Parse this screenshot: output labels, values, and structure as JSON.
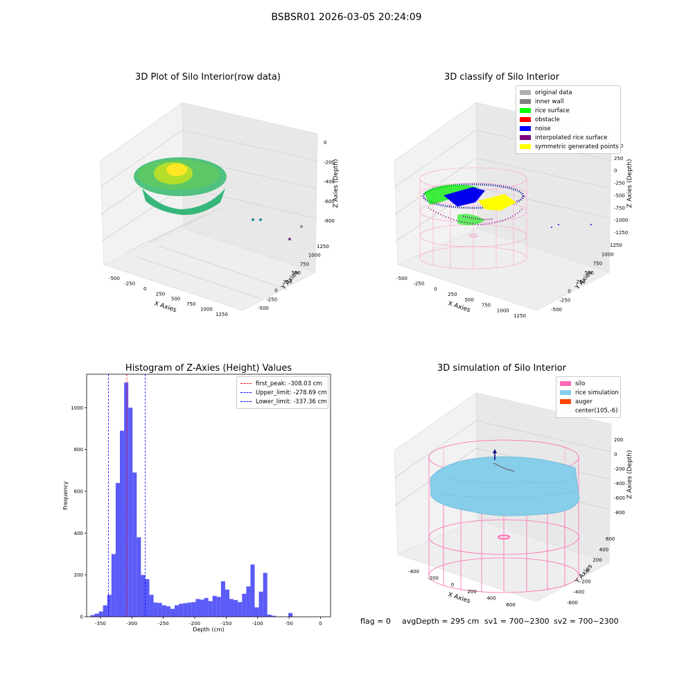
{
  "figure": {
    "suptitle": "BSBSR01 2026-03-05 20:24:09",
    "status": {
      "flag": "flag = 0",
      "avg_depth": "avgDepth = 295 cm",
      "sv1": "sv1 = 700~2300",
      "sv2": "sv2 = 700~2300"
    }
  },
  "colors": {
    "hist_bar": "#5252f7",
    "first_peak_line": "#ff0000",
    "limit_line": "#0000ff",
    "silo": "#ff69b4",
    "rice_simulation": "#87ceeb",
    "auger": "#ff4500",
    "original_data": "#b0b0b0",
    "inner_wall": "#808080",
    "rice_surface": "#00ff00",
    "obstacle": "#ff0000",
    "noise": "#0000ff",
    "interpolated_rice_surface": "#800080",
    "symmetric_generated_points": "#ffff00"
  },
  "chart_data": [
    {
      "type": "scatter",
      "projection": "3d",
      "title": "3D Plot of Silo Interior(row data)",
      "xlabel": "X Axies",
      "ylabel": "Y Axies",
      "zlabel": "Z Axies (Depth)",
      "x_ticks": [
        "-500",
        "-250",
        "0",
        "250",
        "500",
        "750",
        "1000",
        "1250"
      ],
      "y_ticks": [
        "-500",
        "-250",
        "0",
        "250",
        "500",
        "750",
        "1000",
        "1250"
      ],
      "z_ticks": [
        "-800",
        "-600",
        "-400",
        "-200",
        "0"
      ],
      "colormap": "viridis (by depth)"
    },
    {
      "type": "scatter",
      "projection": "3d",
      "title": "3D classify of Silo Interior",
      "xlabel": "X Axies",
      "ylabel": "Y Axies",
      "zlabel": "Z Axies (Depth)",
      "x_ticks": [
        "-500",
        "-250",
        "0",
        "250",
        "500",
        "750",
        "1000",
        "1250"
      ],
      "y_ticks": [
        "-500",
        "-250",
        "0",
        "250",
        "500",
        "750",
        "1000",
        "1250"
      ],
      "z_ticks": [
        "-1250",
        "-1000",
        "-750",
        "-500",
        "-250",
        "0",
        "250",
        "500"
      ],
      "legend_position": "top-right",
      "legend": [
        "original data",
        "inner wall",
        "rice surface",
        "obstacle",
        "noise",
        "interpolated rice surface",
        "symmetric generated points"
      ]
    },
    {
      "type": "bar",
      "title": "Histogram of Z-Axies (Height) Values",
      "xlabel": "Depth (cm)",
      "ylabel": "Frequency",
      "xlim": [
        -372,
        16
      ],
      "ylim": [
        0,
        1160
      ],
      "x_ticks": [
        -350,
        -300,
        -250,
        -200,
        -150,
        -100,
        -50,
        0
      ],
      "y_ticks": [
        0,
        200,
        400,
        600,
        800,
        1000
      ],
      "bin_width": 6.7,
      "bin_start": -366,
      "values": [
        8,
        15,
        25,
        55,
        105,
        300,
        640,
        890,
        1120,
        1000,
        690,
        380,
        200,
        180,
        105,
        68,
        66,
        55,
        50,
        38,
        55,
        62,
        65,
        68,
        70,
        85,
        82,
        90,
        75,
        100,
        95,
        170,
        130,
        85,
        80,
        70,
        110,
        145,
        250,
        45,
        120,
        210,
        10,
        5,
        0,
        0,
        0,
        18
      ],
      "vlines": [
        {
          "label": "first_peak: -308.03 cm",
          "x": -308.03,
          "color": "#ff0000"
        },
        {
          "label": "Upper_limit: -278.69 cm",
          "x": -278.69,
          "color": "#0000ff"
        },
        {
          "label": "Lower_limit: -337.36 cm",
          "x": -337.36,
          "color": "#0000ff"
        }
      ],
      "legend_position": "top-right"
    },
    {
      "type": "surface",
      "projection": "3d",
      "title": "3D simulation of Silo Interior",
      "xlabel": "X Axies",
      "ylabel": "Y Axies",
      "zlabel": "Z Axies (Depth)",
      "x_ticks": [
        "-400",
        "-200",
        "0",
        "200",
        "400",
        "600"
      ],
      "y_ticks": [
        "-600",
        "-400",
        "-200",
        "0",
        "200",
        "400",
        "600"
      ],
      "z_ticks": [
        "-800",
        "-600",
        "-400",
        "-200",
        "0",
        "200"
      ],
      "legend_position": "top-right",
      "legend": [
        "silo",
        "rice simulation",
        "auger",
        "center(105,-6)"
      ]
    }
  ]
}
